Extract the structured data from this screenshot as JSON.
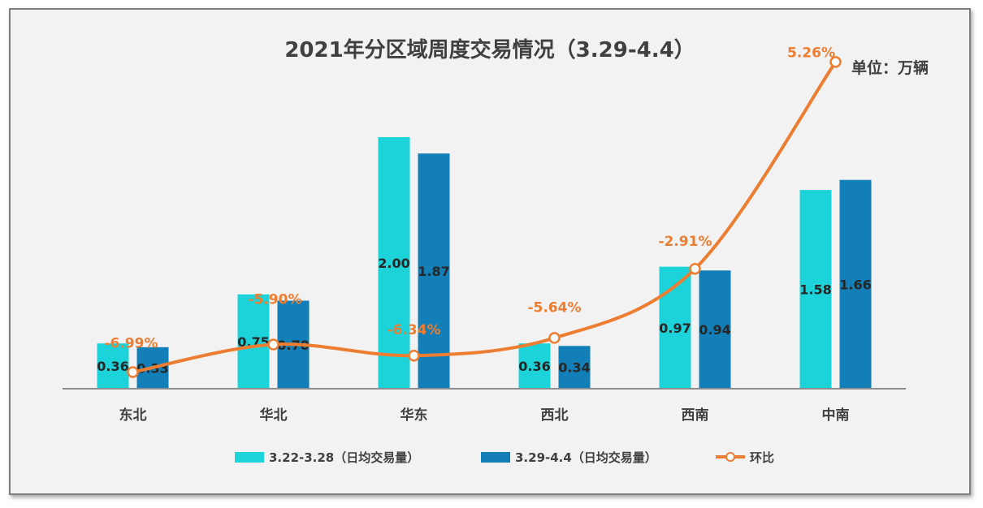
{
  "chart_data": {
    "type": "bar",
    "title": "2021年分区域周度交易情况（3.29-4.4）",
    "unit_label": "单位：万辆",
    "categories": [
      "东北",
      "华北",
      "华东",
      "西北",
      "西南",
      "中南"
    ],
    "series": [
      {
        "name": "3.22-3.28（日均交易量）",
        "type": "bar",
        "color": "#1bd3d9",
        "values": [
          0.36,
          0.75,
          2.0,
          0.36,
          0.97,
          1.58
        ],
        "labels": [
          "0.36",
          "0.75",
          "2.00",
          "0.36",
          "0.97",
          "1.58"
        ]
      },
      {
        "name": "3.29-4.4（日均交易量）",
        "type": "bar",
        "color": "#127fb8",
        "values": [
          0.33,
          0.7,
          1.87,
          0.34,
          0.94,
          1.66
        ],
        "labels": [
          "0.33",
          "0.70",
          "1.87",
          "0.34",
          "0.94",
          "1.66"
        ]
      },
      {
        "name": "环比",
        "type": "line",
        "color": "#ed7d31",
        "axis": "secondary",
        "values": [
          -6.99,
          -5.9,
          -6.34,
          -5.64,
          -2.91,
          5.26
        ],
        "labels": [
          "-6.99%",
          "-5.90%",
          "-6.34%",
          "-5.64%",
          "-2.91%",
          "5.26%"
        ]
      }
    ],
    "ylim": [
      0,
      2.0
    ],
    "y2lim": [
      -8,
      6
    ],
    "grid": false,
    "legend_position": "bottom"
  }
}
